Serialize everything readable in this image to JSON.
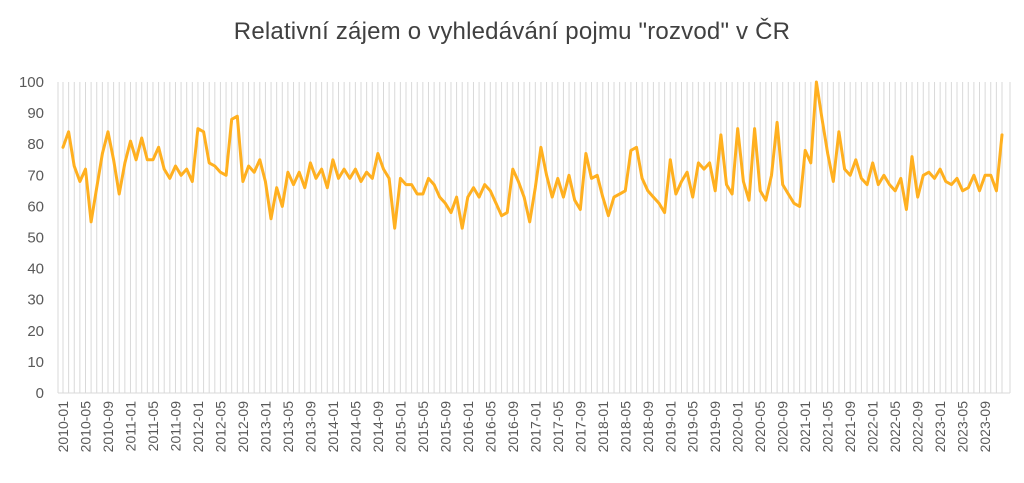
{
  "title": "Relativní zájem o vyhledávání pojmu \"rozvod\" v ČR",
  "colors": {
    "line": "#FFB020",
    "gridline": "#D9D9D9",
    "axis_label": "#595959",
    "title": "#404040",
    "background": "#FFFFFF"
  },
  "chart_data": {
    "type": "line",
    "title": "Relativní zájem o vyhledávání pojmu \"rozvod\" v ČR",
    "xlabel": "",
    "ylabel": "",
    "ylim": [
      0,
      100
    ],
    "y_ticks": [
      0,
      10,
      20,
      30,
      40,
      50,
      60,
      70,
      80,
      90,
      100
    ],
    "x_start": "2010-01",
    "x_end": "2023-12",
    "x_frequency": "monthly",
    "x_tick_labels": [
      "2010-01",
      "2010-05",
      "2010-09",
      "2011-01",
      "2011-05",
      "2011-09",
      "2012-01",
      "2012-05",
      "2012-09",
      "2013-01",
      "2013-05",
      "2013-09",
      "2014-01",
      "2014-05",
      "2014-09",
      "2015-01",
      "2015-05",
      "2015-09",
      "2016-01",
      "2016-05",
      "2016-09",
      "2017-01",
      "2017-05",
      "2017-09",
      "2018-01",
      "2018-05",
      "2018-09",
      "2019-01",
      "2019-05",
      "2019-09",
      "2020-01",
      "2020-05",
      "2020-09",
      "2021-01",
      "2021-05",
      "2021-09",
      "2022-01",
      "2022-05",
      "2022-09",
      "2023-01",
      "2023-05",
      "2023-09"
    ],
    "x_tick_every_n_months": 4,
    "grid": "vertical-monthly",
    "legend": "none",
    "values": [
      79,
      84,
      73,
      68,
      72,
      55,
      66,
      77,
      84,
      75,
      64,
      74,
      81,
      75,
      82,
      75,
      75,
      79,
      72,
      69,
      73,
      70,
      72,
      68,
      85,
      84,
      74,
      73,
      71,
      70,
      88,
      89,
      68,
      73,
      71,
      75,
      68,
      56,
      66,
      60,
      71,
      67,
      71,
      66,
      74,
      69,
      72,
      66,
      75,
      69,
      72,
      69,
      72,
      68,
      71,
      69,
      77,
      72,
      69,
      53,
      69,
      67,
      67,
      64,
      64,
      69,
      67,
      63,
      61,
      58,
      63,
      53,
      63,
      66,
      63,
      67,
      65,
      61,
      57,
      58,
      72,
      68,
      63,
      55,
      66,
      79,
      70,
      63,
      69,
      63,
      70,
      62,
      59,
      77,
      69,
      70,
      63,
      57,
      63,
      64,
      65,
      78,
      79,
      69,
      65,
      63,
      61,
      58,
      75,
      64,
      68,
      71,
      63,
      74,
      72,
      74,
      65,
      83,
      67,
      64,
      85,
      68,
      62,
      85,
      65,
      62,
      70,
      87,
      67,
      64,
      61,
      60,
      78,
      74,
      100,
      88,
      77,
      68,
      84,
      72,
      70,
      75,
      69,
      67,
      74,
      67,
      70,
      67,
      65,
      69,
      59,
      76,
      63,
      70,
      71,
      69,
      72,
      68,
      67,
      69,
      65,
      66,
      70,
      65,
      70,
      70,
      65,
      83
    ]
  }
}
